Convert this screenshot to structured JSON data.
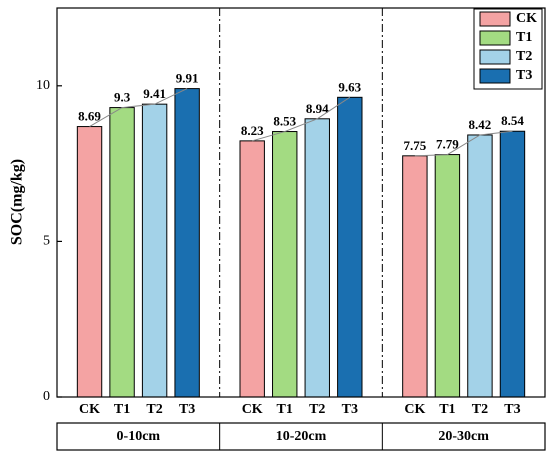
{
  "chart_data": {
    "type": "bar",
    "ylabel": "SOC(mg/kg)",
    "categories": [
      "0-10cm",
      "10-20cm",
      "20-30cm"
    ],
    "series": [
      {
        "name": "CK",
        "color": "#f4a3a3",
        "values": [
          8.69,
          8.23,
          7.75
        ]
      },
      {
        "name": "T1",
        "color": "#a3db82",
        "values": [
          9.3,
          8.53,
          7.79
        ]
      },
      {
        "name": "T2",
        "color": "#a3d2e8",
        "values": [
          9.41,
          8.94,
          8.42
        ]
      },
      {
        "name": "T3",
        "color": "#1a6fb0",
        "values": [
          9.91,
          9.63,
          8.54
        ]
      }
    ],
    "ylim": [
      0,
      12.5
    ],
    "yticks": [
      0,
      5,
      10
    ],
    "legend": "upper right"
  }
}
